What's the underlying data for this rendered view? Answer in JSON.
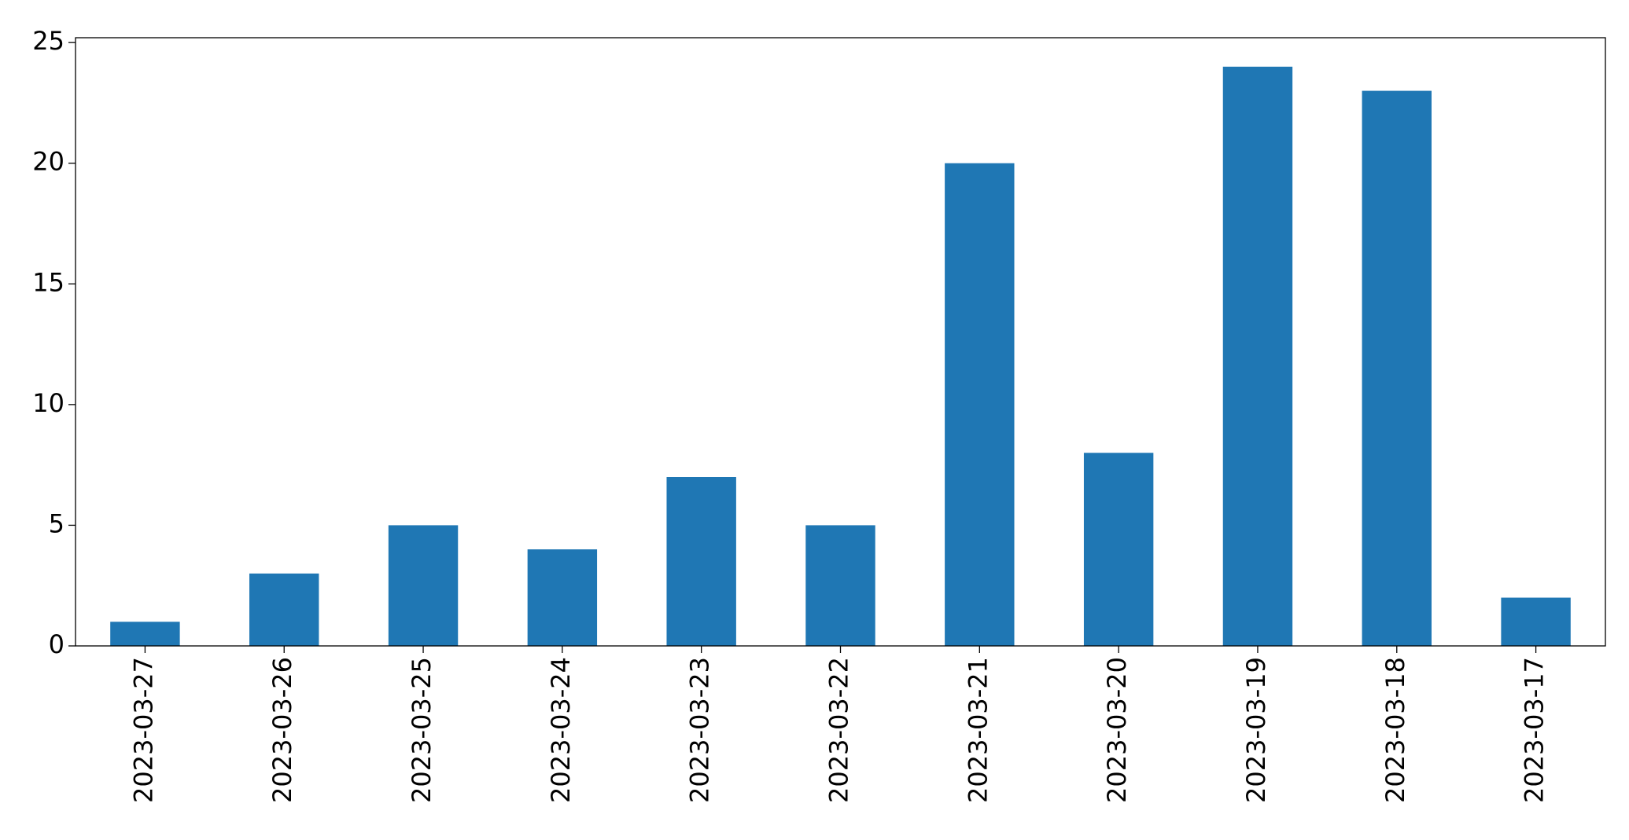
{
  "chart_data": {
    "type": "bar",
    "categories": [
      "2023-03-27",
      "2023-03-26",
      "2023-03-25",
      "2023-03-24",
      "2023-03-23",
      "2023-03-22",
      "2023-03-21",
      "2023-03-20",
      "2023-03-19",
      "2023-03-18",
      "2023-03-17"
    ],
    "values": [
      1,
      3,
      5,
      4,
      7,
      5,
      20,
      8,
      24,
      23,
      2
    ],
    "color": "#1f77b4",
    "ylim": [
      0,
      25.2
    ],
    "yticks": [
      0,
      5,
      10,
      15,
      20,
      25
    ],
    "grid": false
  }
}
